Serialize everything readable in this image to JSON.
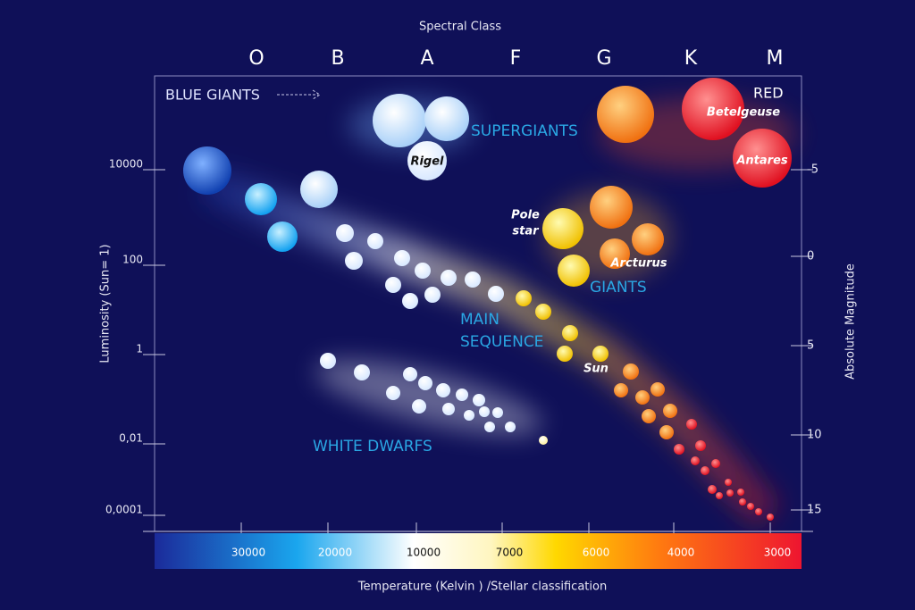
{
  "title": "Spectral Class",
  "spectral_classes": [
    "O",
    "B",
    "A",
    "F",
    "G",
    "K",
    "M"
  ],
  "luminosity_axis": {
    "label": "Luminosity (Sun= 1)",
    "ticks": [
      "10000",
      "100",
      "1",
      "0,01",
      "0,0001"
    ]
  },
  "magnitude_axis": {
    "label": "Absolute Magnitude",
    "ticks": [
      "-5",
      "0",
      "5",
      "10",
      "15"
    ]
  },
  "temperature_axis": {
    "label": "Temperature (Kelvin ) /Stellar classification",
    "ticks": [
      "30000",
      "20000",
      "10000",
      "7000",
      "6000",
      "4000",
      "3000"
    ]
  },
  "regions": {
    "blue_giants": "BLUE GIANTS",
    "supergiants": "SUPERGIANTS",
    "red": "RED",
    "giants": "GIANTS",
    "main_sequence": [
      "MAIN",
      "SEQUENCE"
    ],
    "white_dwarfs": "WHITE DWARFS"
  },
  "stars": {
    "rigel": "Rigel",
    "betelgeuse": "Betelgeuse",
    "antares": "Antares",
    "pole_star": [
      "Pole",
      "star"
    ],
    "arcturus": "Arcturus",
    "sun": "Sun"
  }
}
